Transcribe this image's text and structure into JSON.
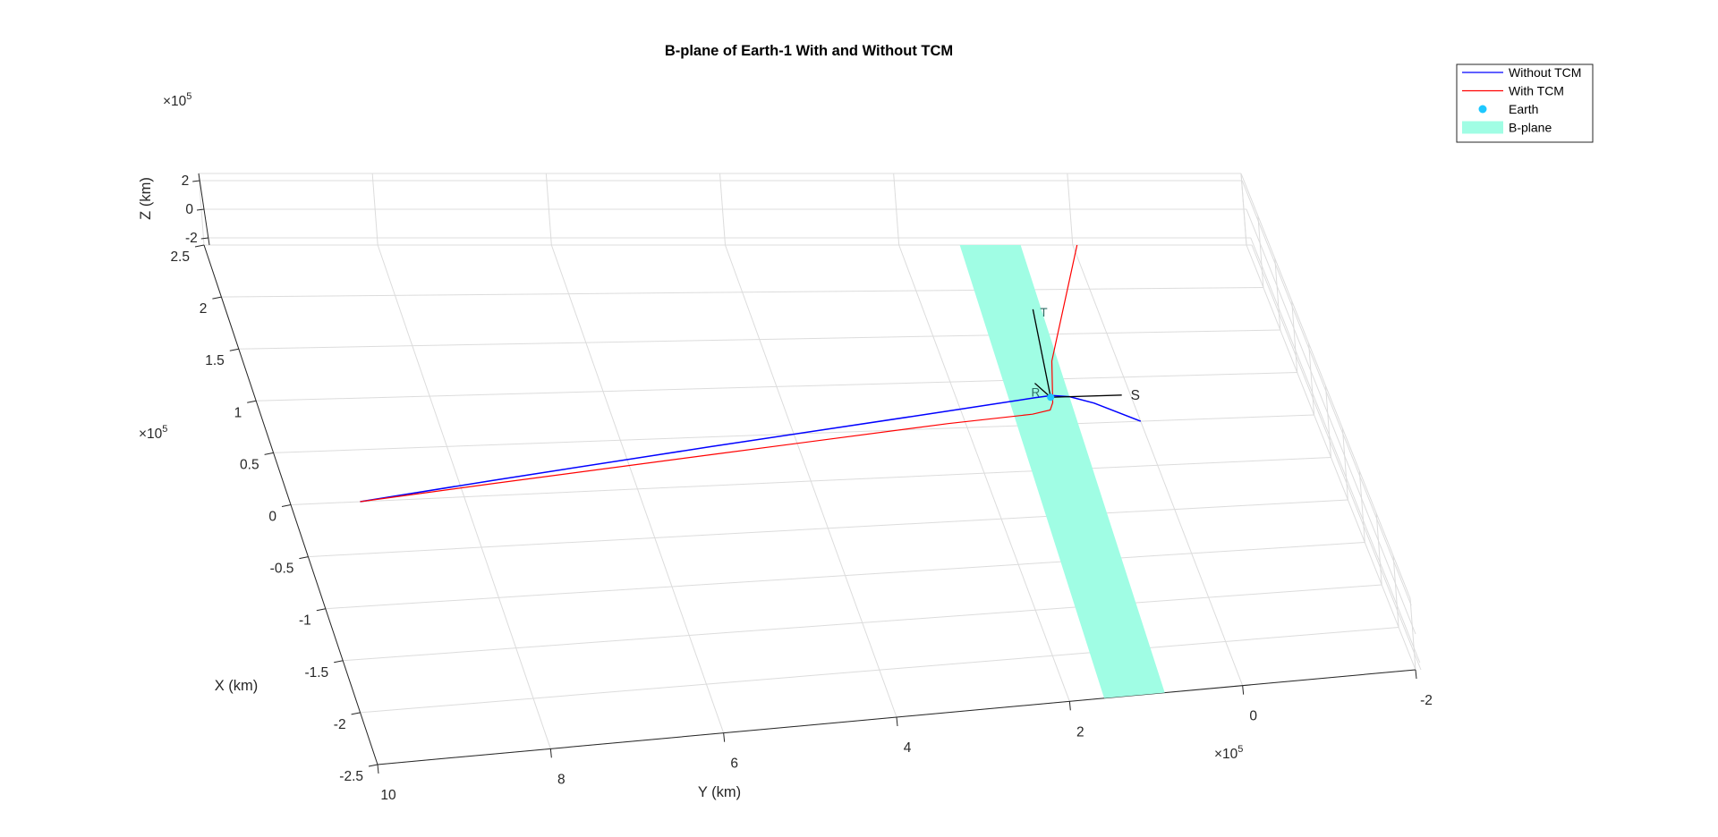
{
  "figure": {
    "title": "B-plane of Earth-1 With and Without TCM"
  },
  "chart_data": {
    "type": "line",
    "title": "B-plane of Earth-1 With and Without TCM",
    "xlabel": "X (km)",
    "ylabel": "Y (km)",
    "zlabel": "Z (km)",
    "x_exponent": "5",
    "y_exponent": "5",
    "z_exponent": "5",
    "exponent_base": "×10",
    "xlim": [
      -2.5,
      2.5
    ],
    "ylim": [
      -2,
      10
    ],
    "zlim": [
      -2.5,
      2.5
    ],
    "x_ticks": [
      "-2.5",
      "-2",
      "-1.5",
      "-1",
      "-0.5",
      "0",
      "0.5",
      "1",
      "1.5",
      "2",
      "2.5"
    ],
    "y_ticks": [
      "10",
      "8",
      "6",
      "4",
      "2",
      "0",
      "-2"
    ],
    "z_ticks": [
      "2",
      "0",
      "-2"
    ],
    "grid": true,
    "legend": {
      "location": "top-right",
      "entries": [
        {
          "label": "Without TCM",
          "color": "#0000ff",
          "kind": "line"
        },
        {
          "label": "With TCM",
          "color": "#ff0000",
          "kind": "line"
        },
        {
          "label": "Earth",
          "color": "#1ec8ff",
          "kind": "marker"
        },
        {
          "label": "B-plane",
          "color": "#a0fde4",
          "kind": "patch"
        }
      ]
    },
    "series": [
      {
        "name": "Without TCM",
        "color": "#0000ff",
        "points": [
          [
            0.0,
            9.2,
            0
          ],
          [
            0.15,
            7.6,
            0
          ],
          [
            0.4,
            5.0,
            0
          ],
          [
            0.68,
            2.2,
            0
          ],
          [
            0.8,
            1.1,
            0
          ],
          [
            0.82,
            0.9,
            0
          ],
          [
            0.8,
            0.7,
            0
          ],
          [
            0.72,
            0.45,
            0
          ],
          [
            0.5,
            0.0,
            0
          ]
        ]
      },
      {
        "name": "With TCM",
        "color": "#ff0000",
        "points": [
          [
            0.0,
            9.2,
            0
          ],
          [
            0.12,
            7.6,
            0
          ],
          [
            0.32,
            5.0,
            0
          ],
          [
            0.55,
            2.2,
            0
          ],
          [
            0.62,
            1.2,
            0
          ],
          [
            0.66,
            0.98,
            0
          ],
          [
            0.74,
            0.92,
            0
          ],
          [
            1.2,
            0.75,
            0
          ],
          [
            2.5,
            -0.05,
            0
          ]
        ]
      }
    ],
    "earth": {
      "name": "Earth",
      "point": [
        0.8,
        0.92,
        0
      ],
      "color": "#1ec8ff"
    },
    "bplane": {
      "name": "B-plane",
      "color": "#a0fde4",
      "corners": [
        [
          -2.5,
          1.6,
          0
        ],
        [
          -2.5,
          0.9,
          0
        ],
        [
          2.5,
          0.6,
          0
        ],
        [
          2.5,
          1.3,
          0
        ]
      ]
    },
    "b_vectors": [
      {
        "label": "S",
        "from": [
          0.8,
          0.92,
          0
        ],
        "to": [
          0.8,
          0.1,
          0
        ]
      },
      {
        "label": "R",
        "from": [
          0.8,
          0.92,
          0
        ],
        "to": [
          0.96,
          1.04,
          0
        ]
      },
      {
        "label": "T",
        "from": [
          0.8,
          0.92,
          0
        ],
        "to": [
          1.78,
          0.74,
          0
        ]
      }
    ]
  }
}
